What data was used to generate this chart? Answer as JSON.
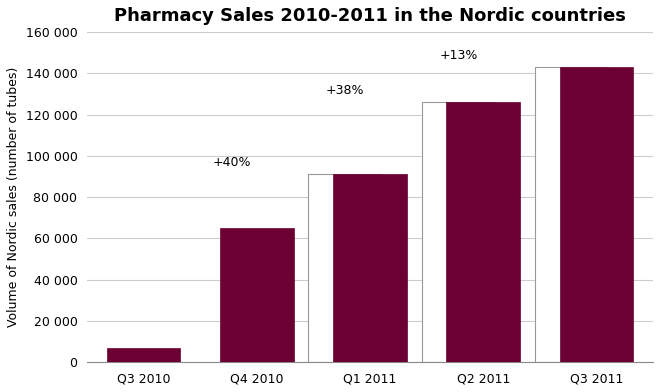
{
  "title": "Pharmacy Sales 2010-2011 in the Nordic countries",
  "ylabel": "Volume of Nordic sales (number of tubes)",
  "categories": [
    "Q3 2010",
    "Q4 2010",
    "Q1 2011",
    "Q2 2011",
    "Q3 2011"
  ],
  "values": [
    7000,
    65000,
    91000,
    126000,
    143000
  ],
  "ghost_values": [
    null,
    91000,
    126000,
    143000,
    null
  ],
  "annotations": [
    {
      "text": null,
      "bar_idx": 1
    },
    {
      "text": "+40%",
      "bar_idx": 1
    },
    {
      "text": "+38%",
      "bar_idx": 2
    },
    {
      "text": "+13%",
      "bar_idx": 3
    },
    {
      "text": null,
      "bar_idx": 4
    }
  ],
  "bar_color": "#6B0032",
  "ghost_color": "#FFFFFF",
  "ghost_edge_color": "#999999",
  "background_color": "#FFFFFF",
  "ylim": [
    0,
    160000
  ],
  "yticks": [
    0,
    20000,
    40000,
    60000,
    80000,
    100000,
    120000,
    140000,
    160000
  ],
  "ytick_labels": [
    "0",
    "20 000",
    "40 000",
    "60 000",
    "80 000",
    "100 000",
    "120 000",
    "140 000",
    "160 000"
  ],
  "title_fontsize": 13,
  "axis_label_fontsize": 9,
  "tick_fontsize": 9,
  "annotation_fontsize": 9,
  "bar_width": 0.65,
  "grid_color": "#CCCCCC",
  "grid_linewidth": 0.8
}
